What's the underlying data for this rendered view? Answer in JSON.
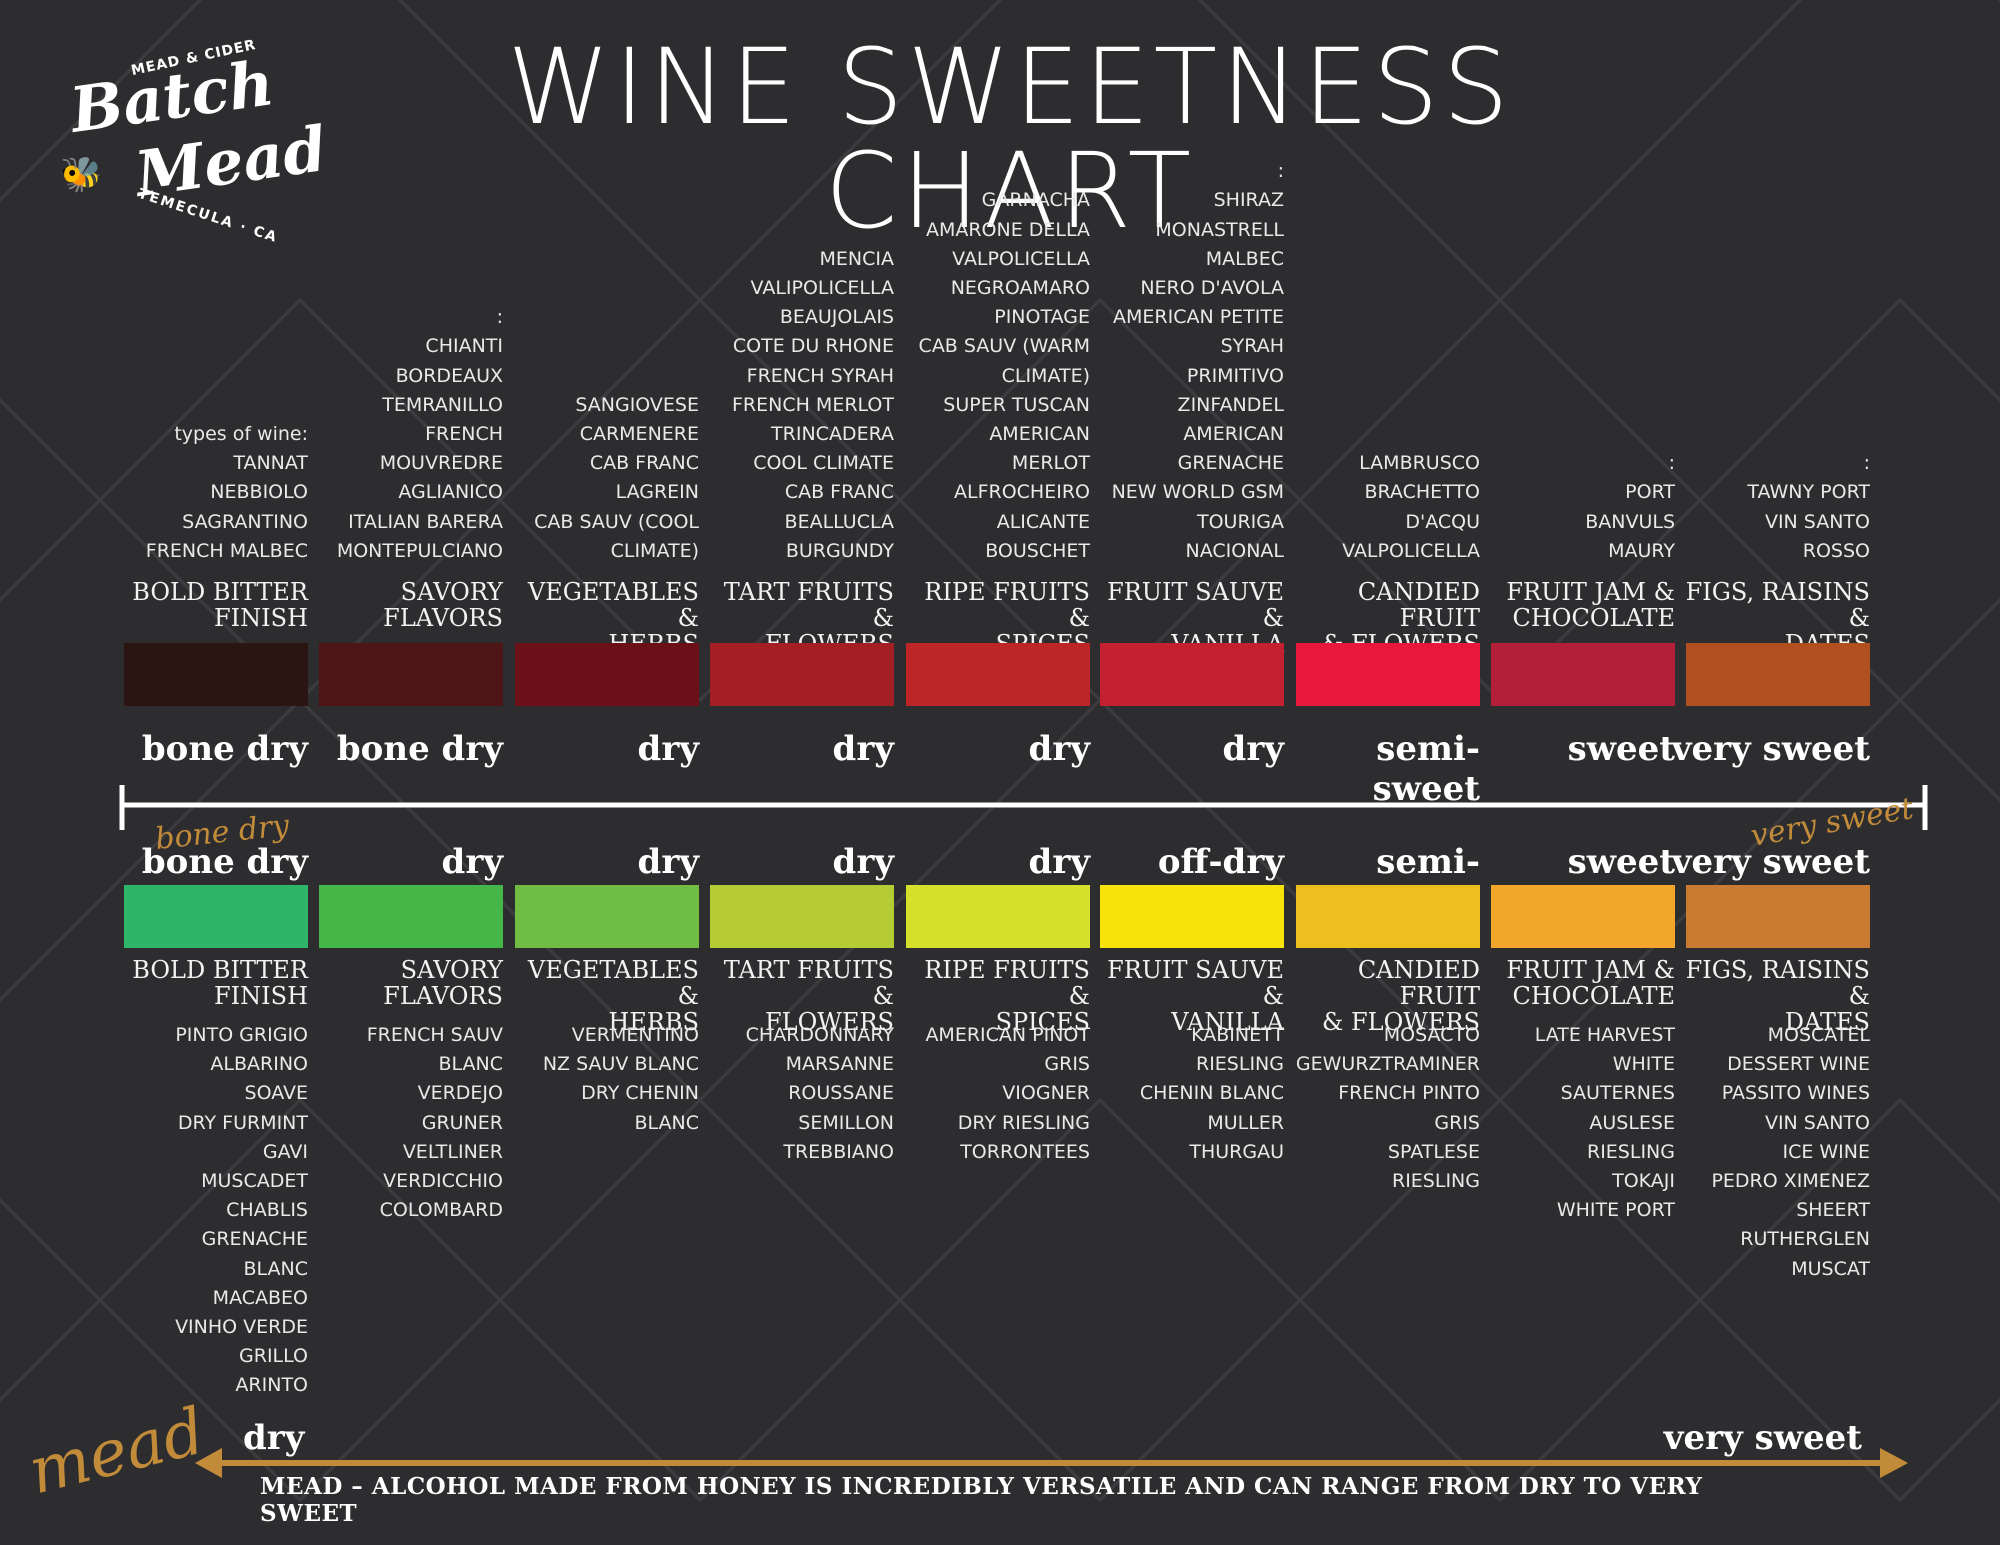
{
  "title": "WINE SWEETNESS CHART",
  "logo": {
    "top": "MEAD & CIDER",
    "line1": "Batch",
    "line2": "Mead",
    "location": "TEMECULA · CA",
    "bee": "bee-icon"
  },
  "red": {
    "label": "types of wine:",
    "columns": [
      {
        "wines": [
          "TANNAT",
          "NEBBIOLO",
          "SAGRANTINO",
          "FRENCH MALBEC"
        ],
        "flavor": [
          "BOLD BITTER",
          "FINISH"
        ],
        "sweetness": "bone dry",
        "color": "#2a1512"
      },
      {
        "wines": [
          ":",
          "CHIANTI",
          "BORDEAUX",
          "TEMRANILLO",
          "FRENCH",
          "MOUVREDRE",
          "AGLIANICO",
          "ITALIAN BARERA",
          "MONTEPULCIANO"
        ],
        "flavor": [
          "SAVORY",
          "FLAVORS"
        ],
        "sweetness": "bone dry",
        "color": "#4e1517"
      },
      {
        "wines": [
          "SANGIOVESE",
          "CARMENERE",
          "CAB FRANC",
          "LAGREIN",
          "CAB SAUV (COOL",
          "CLIMATE)"
        ],
        "flavor": [
          "VEGETABLES &",
          "HERBS"
        ],
        "sweetness": "dry",
        "color": "#6c0f18"
      },
      {
        "wines": [
          "MENCIA",
          "VALIPOLICELLA",
          "BEAUJOLAIS",
          "COTE DU RHONE",
          "FRENCH SYRAH",
          "FRENCH MERLOT",
          "TRINCADERA",
          "COOL CLIMATE",
          "CAB FRANC",
          "BEALLUCLA",
          "BURGUNDY"
        ],
        "flavor": [
          "TART FRUITS &",
          "FLOWERS"
        ],
        "sweetness": "dry",
        "color": "#a41f24"
      },
      {
        "wines": [
          "GARNACHA",
          "AMARONE DELLA",
          "VALPOLICELLA",
          "NEGROAMARO",
          "PINOTAGE",
          "CAB SAUV (WARM",
          "CLIMATE)",
          "SUPER TUSCAN",
          "AMERICAN",
          "MERLOT",
          "ALFROCHEIRO",
          "ALICANTE",
          "BOUSCHET"
        ],
        "flavor": [
          "RIPE FRUITS &",
          "SPICES"
        ],
        "sweetness": "dry",
        "color": "#bd2527"
      },
      {
        "wines": [
          ":",
          "SHIRAZ",
          "MONASTRELL",
          "MALBEC",
          "NERO D'AVOLA",
          "AMERICAN PETITE",
          "SYRAH",
          "PRIMITIVO",
          "ZINFANDEL",
          "AMERICAN",
          "GRENACHE",
          "NEW WORLD GSM",
          "TOURIGA",
          "NACIONAL"
        ],
        "flavor": [
          "FRUIT SAUVE &",
          "VANILLA"
        ],
        "sweetness": "dry",
        "color": "#c32030"
      },
      {
        "wines": [
          "LAMBRUSCO",
          "BRACHETTO",
          "D'ACQU",
          "VALPOLICELLA"
        ],
        "flavor": [
          "CANDIED FRUIT",
          "& FLOWERS"
        ],
        "sweetness": "semi-sweet",
        "color": "#e8183b"
      },
      {
        "wines": [
          ":",
          "PORT",
          "BANVULS",
          "MAURY"
        ],
        "flavor": [
          "FRUIT JAM &",
          "CHOCOLATE"
        ],
        "sweetness": "sweet",
        "color": "#b41f38"
      },
      {
        "wines": [
          ":",
          "TAWNY PORT",
          "VIN SANTO",
          "ROSSO"
        ],
        "flavor": [
          "FIGS, RAISINS &",
          "DATES"
        ],
        "sweetness": "very sweet",
        "color": "#b0501e"
      }
    ]
  },
  "scale": {
    "left_label": "bone dry",
    "right_label": "very sweet"
  },
  "white": {
    "columns": [
      {
        "sweetness": "bone dry",
        "color": "#2fb56a",
        "flavor": [
          "BOLD BITTER",
          "FINISH"
        ],
        "wines": [
          "PINTO GRIGIO",
          "ALBARINO",
          "SOAVE",
          "DRY FURMINT",
          "GAVI",
          "MUSCADET",
          "CHABLIS",
          "GRENACHE",
          "BLANC",
          "MACABEO",
          "VINHO VERDE",
          "GRILLO",
          "ARINTO"
        ]
      },
      {
        "sweetness": "dry",
        "color": "#45b648",
        "flavor": [
          "SAVORY",
          "FLAVORS"
        ],
        "wines": [
          "FRENCH SAUV",
          "BLANC",
          "VERDEJO",
          "GRUNER",
          "VELTLINER",
          "VERDICCHIO",
          "COLOMBARD"
        ]
      },
      {
        "sweetness": "dry",
        "color": "#6fbd44",
        "flavor": [
          "VEGETABLES &",
          "HERBS"
        ],
        "wines": [
          "VERMENTINO",
          "NZ SAUV BLANC",
          "DRY CHENIN",
          "BLANC"
        ]
      },
      {
        "sweetness": "dry",
        "color": "#b5cc35",
        "flavor": [
          "TART FRUITS &",
          "FLOWERS"
        ],
        "wines": [
          "CHARDONNARY",
          "MARSANNE",
          "ROUSSANE",
          "SEMILLON",
          "TREBBIANO"
        ]
      },
      {
        "sweetness": "dry",
        "color": "#d5e02b",
        "flavor": [
          "RIPE FRUITS &",
          "SPICES"
        ],
        "wines": [
          "AMERICAN PINOT",
          "GRIS",
          "VIOGNER",
          "DRY RIESLING",
          "TORRONTEES"
        ]
      },
      {
        "sweetness": "off-dry",
        "color": "#f7e309",
        "flavor": [
          "FRUIT SAUVE &",
          "VANILLA"
        ],
        "wines": [
          "KABINETT",
          "RIESLING",
          "CHENIN BLANC",
          "MULLER",
          "THURGAU"
        ]
      },
      {
        "sweetness": "semi-sweet",
        "color": "#ecbf1f",
        "flavor": [
          "CANDIED FRUIT",
          "& FLOWERS"
        ],
        "wines": [
          "MOSACTO",
          "GEWURZTRAMINER",
          "FRENCH PINTO",
          "GRIS",
          "SPATLESE",
          "RIESLING"
        ]
      },
      {
        "sweetness": "sweet",
        "color": "#f2a72a",
        "flavor": [
          "FRUIT JAM &",
          "CHOCOLATE"
        ],
        "wines": [
          "LATE HARVEST",
          "WHITE",
          "SAUTERNES",
          "AUSLESE",
          "RIESLING",
          "TOKAJI",
          "WHITE PORT"
        ]
      },
      {
        "sweetness": "very sweet",
        "color": "#c97b32",
        "flavor": [
          "FIGS, RAISINS &",
          "DATES"
        ],
        "wines": [
          "MOSCATEL",
          "DESSERT WINE",
          "PASSITO WINES",
          "VIN SANTO",
          "ICE WINE",
          "PEDRO XIMENEZ",
          "SHEERT",
          "RUTHERGLEN",
          "MUSCAT"
        ]
      }
    ]
  },
  "mead": {
    "label": "mead",
    "left": "dry",
    "right": "very sweet",
    "caption": "MEAD – ALCOHOL MADE FROM HONEY IS INCREDIBLY VERSATILE AND CAN RANGE FROM DRY TO VERY SWEET",
    "arrow_color": "#c28b3a"
  }
}
